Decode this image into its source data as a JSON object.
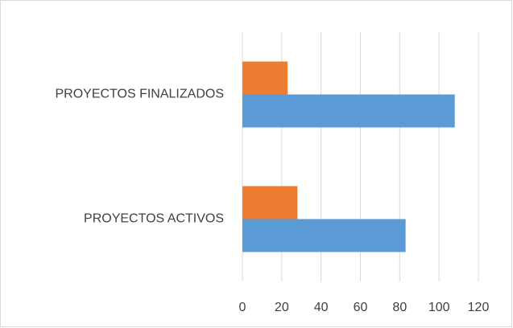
{
  "chart_data": {
    "type": "barh",
    "categories": [
      "PROYECTOS ACTIVOS",
      "PROYECTOS FINALIZADOS"
    ],
    "series": [
      {
        "color": "#5b9bd5",
        "values": [
          83,
          108
        ]
      },
      {
        "color": "#ed7d31",
        "values": [
          28,
          23
        ]
      }
    ],
    "xlim": [
      0,
      120
    ],
    "xticks": [
      0,
      20,
      40,
      60,
      80,
      100,
      120
    ],
    "grid": true
  }
}
